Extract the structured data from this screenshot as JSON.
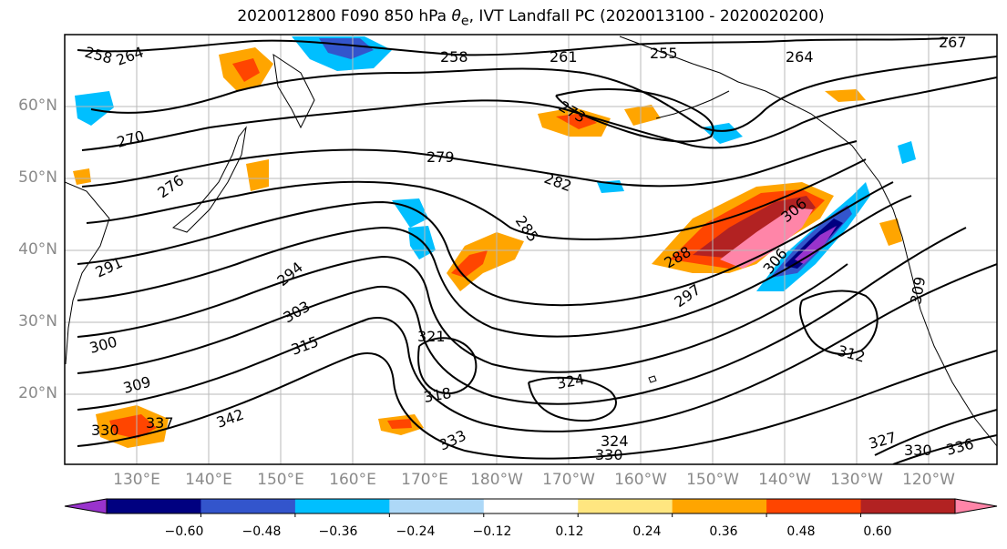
{
  "title": {
    "prefix": "2020012800 F090 850 hPa",
    "symbol": "θ",
    "subscript": "e",
    "suffix": ", IVT Landfall PC (2020013100 - 2020020200)"
  },
  "lat_labels": [
    "60°N",
    "50°N",
    "40°N",
    "30°N",
    "20°N"
  ],
  "lon_labels": [
    "130°E",
    "140°E",
    "150°E",
    "160°E",
    "170°E",
    "180°W",
    "170°W",
    "160°W",
    "150°W",
    "140°W",
    "130°W",
    "120°W"
  ],
  "contour_labels": [
    "258",
    "264",
    "258",
    "261",
    "255",
    "264",
    "267",
    "270",
    "273",
    "276",
    "279",
    "282",
    "285",
    "288",
    "291",
    "294",
    "297",
    "300",
    "303",
    "306",
    "306",
    "309",
    "309",
    "312",
    "315",
    "318",
    "321",
    "324",
    "324",
    "327",
    "330",
    "330",
    "330",
    "333",
    "336",
    "337",
    "342"
  ],
  "colorbar": {
    "ticks": [
      "−0.60",
      "−0.48",
      "−0.36",
      "−0.24",
      "−0.12",
      "0.12",
      "0.24",
      "0.36",
      "0.48",
      "0.60"
    ],
    "colors": [
      "#9933cc",
      "#000080",
      "#3355cc",
      "#00bfff",
      "#add8f7",
      "#ffffff",
      "#ffe680",
      "#ffa500",
      "#ff4500",
      "#b22222",
      "#ff85a8"
    ]
  }
}
